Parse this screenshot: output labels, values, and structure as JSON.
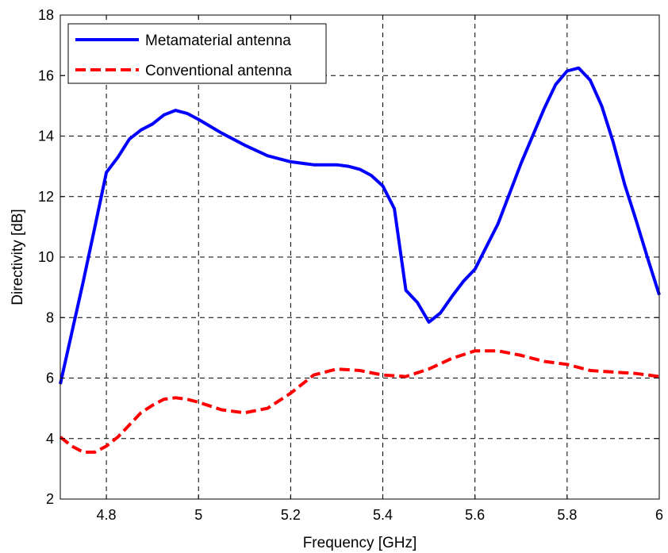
{
  "chart_data": {
    "type": "line",
    "xlabel": "Frequency [GHz]",
    "ylabel": "Directivity [dB]",
    "xlim": [
      4.7,
      6.0
    ],
    "ylim": [
      2,
      18
    ],
    "x_ticks": [
      "4.8",
      "5",
      "5.2",
      "5.4",
      "5.6",
      "5.8",
      "6"
    ],
    "x_tick_values": [
      4.8,
      5.0,
      5.2,
      5.4,
      5.6,
      5.8,
      6.0
    ],
    "y_ticks": [
      "2",
      "4",
      "6",
      "8",
      "10",
      "12",
      "14",
      "16",
      "18"
    ],
    "y_tick_values": [
      2,
      4,
      6,
      8,
      10,
      12,
      14,
      16,
      18
    ],
    "grid": true,
    "legend_position": "top-left",
    "series": [
      {
        "name": "Metamaterial antenna",
        "color": "#0000ff",
        "style": "solid",
        "x": [
          4.7,
          4.725,
          4.75,
          4.775,
          4.8,
          4.825,
          4.85,
          4.875,
          4.9,
          4.925,
          4.95,
          4.975,
          5.0,
          5.05,
          5.1,
          5.15,
          5.2,
          5.25,
          5.3,
          5.325,
          5.35,
          5.375,
          5.4,
          5.425,
          5.45,
          5.475,
          5.5,
          5.525,
          5.55,
          5.575,
          5.6,
          5.65,
          5.7,
          5.75,
          5.775,
          5.8,
          5.825,
          5.85,
          5.875,
          5.9,
          5.925,
          5.95,
          5.975,
          6.0
        ],
        "y": [
          5.8,
          7.5,
          9.2,
          11.0,
          12.8,
          13.3,
          13.9,
          14.2,
          14.4,
          14.7,
          14.85,
          14.75,
          14.55,
          14.1,
          13.7,
          13.35,
          13.15,
          13.05,
          13.05,
          13.0,
          12.9,
          12.7,
          12.35,
          11.6,
          8.9,
          8.5,
          7.85,
          8.15,
          8.7,
          9.2,
          9.6,
          11.1,
          13.1,
          14.9,
          15.7,
          16.15,
          16.25,
          15.85,
          15.0,
          13.8,
          12.4,
          11.2,
          9.95,
          8.75
        ]
      },
      {
        "name": "Conventional antenna",
        "color": "#ff0000",
        "style": "dashed",
        "x": [
          4.7,
          4.725,
          4.75,
          4.775,
          4.8,
          4.825,
          4.85,
          4.875,
          4.9,
          4.925,
          4.95,
          4.975,
          5.0,
          5.05,
          5.1,
          5.15,
          5.2,
          5.25,
          5.3,
          5.35,
          5.4,
          5.45,
          5.5,
          5.55,
          5.6,
          5.65,
          5.7,
          5.75,
          5.8,
          5.85,
          5.9,
          5.95,
          6.0
        ],
        "y": [
          4.05,
          3.75,
          3.55,
          3.55,
          3.75,
          4.05,
          4.45,
          4.85,
          5.1,
          5.3,
          5.35,
          5.3,
          5.2,
          4.95,
          4.85,
          5.0,
          5.5,
          6.1,
          6.3,
          6.25,
          6.1,
          6.05,
          6.3,
          6.65,
          6.9,
          6.9,
          6.75,
          6.55,
          6.45,
          6.25,
          6.2,
          6.15,
          6.05
        ]
      }
    ]
  }
}
